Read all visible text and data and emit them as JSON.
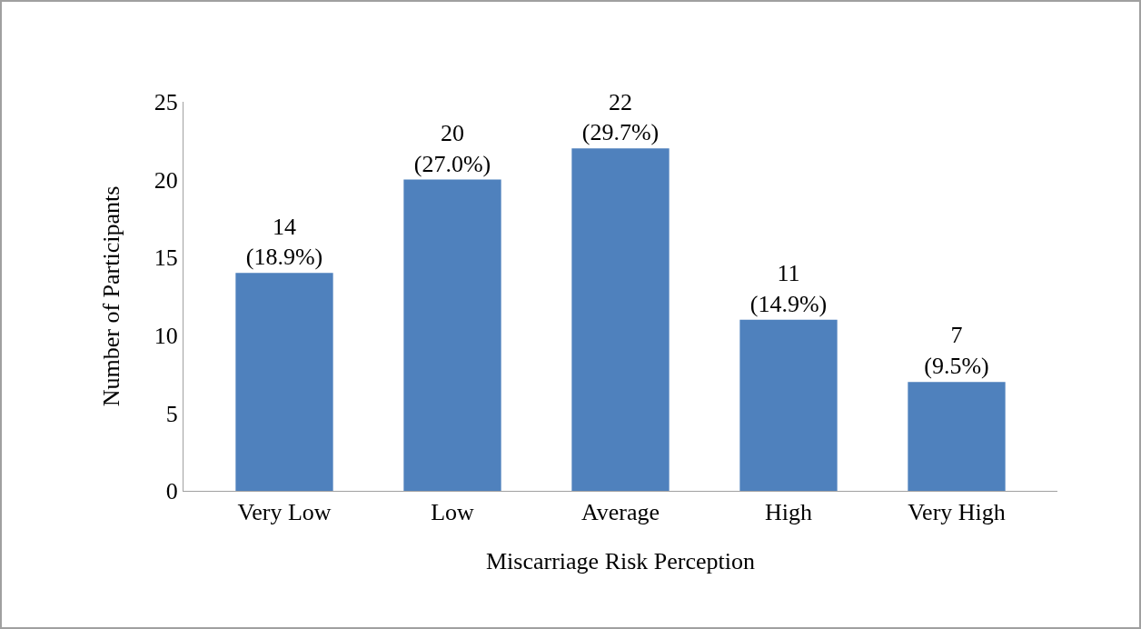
{
  "chart_data": {
    "type": "bar",
    "xlabel": "Miscarriage Risk Perception",
    "ylabel": "Number of Participants",
    "categories": [
      "Very Low",
      "Low",
      "Average",
      "High",
      "Very High"
    ],
    "values": [
      14,
      20,
      22,
      11,
      7
    ],
    "value_labels": [
      "14\n(18.9%)",
      "20\n(27.0%)",
      "22\n(29.7%)",
      "11\n(14.9%)",
      "7\n(9.5%)"
    ],
    "color": "#4f81bd",
    "ylim": [
      0,
      25
    ],
    "yticks": [
      0,
      5,
      10,
      15,
      20,
      25
    ],
    "grid": false,
    "legend": false
  }
}
